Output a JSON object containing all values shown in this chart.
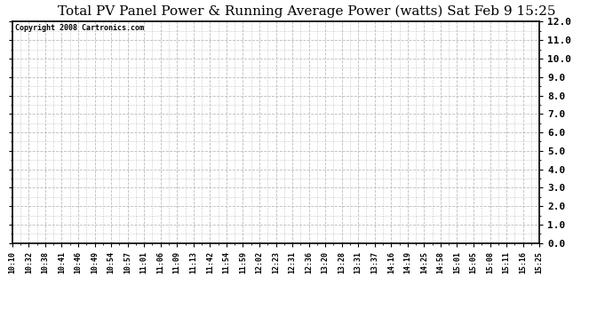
{
  "title": "Total PV Panel Power & Running Average Power (watts) Sat Feb 9 15:25",
  "copyright_text": "Copyright 2008 Cartronics.com",
  "x_labels": [
    "10:10",
    "10:32",
    "10:38",
    "10:41",
    "10:46",
    "10:49",
    "10:54",
    "10:57",
    "11:01",
    "11:06",
    "11:09",
    "11:13",
    "11:42",
    "11:54",
    "11:59",
    "12:02",
    "12:23",
    "12:31",
    "12:36",
    "13:20",
    "13:28",
    "13:31",
    "13:37",
    "14:16",
    "14:19",
    "14:25",
    "14:58",
    "15:01",
    "15:05",
    "15:08",
    "15:11",
    "15:16",
    "15:25"
  ],
  "y_min": 0.0,
  "y_max": 12.0,
  "y_ticks": [
    0.0,
    1.0,
    2.0,
    3.0,
    4.0,
    5.0,
    6.0,
    7.0,
    8.0,
    9.0,
    10.0,
    11.0,
    12.0
  ],
  "background_color": "#ffffff",
  "plot_bg_color": "#ffffff",
  "grid_color": "#bbbbbb",
  "border_color": "#000000",
  "title_fontsize": 11,
  "copyright_fontsize": 6,
  "tick_fontsize": 6,
  "ytick_fontsize": 8
}
